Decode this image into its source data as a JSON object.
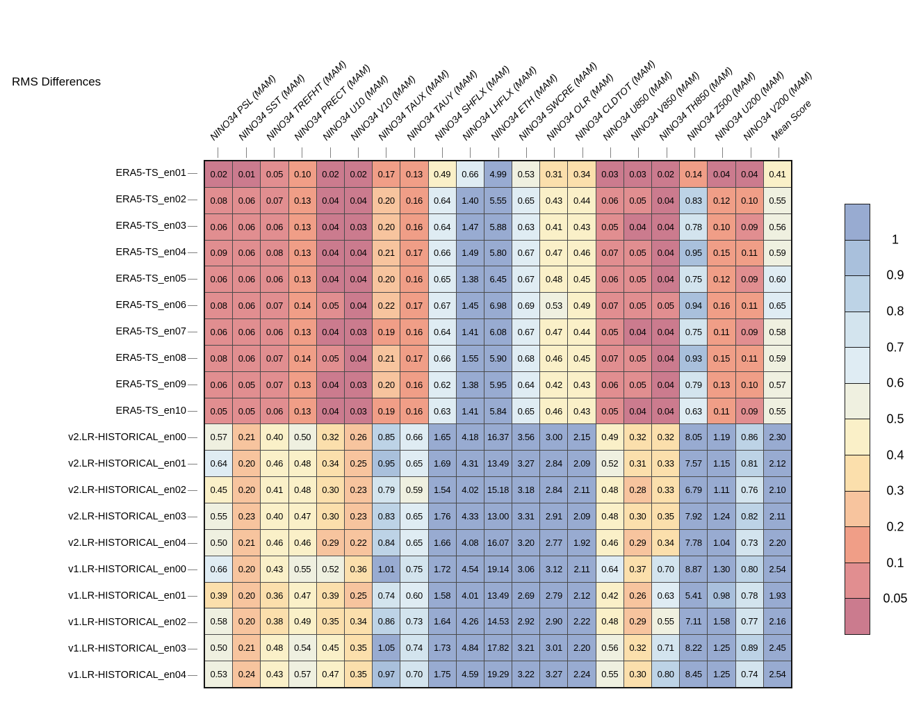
{
  "title": "RMS Differences",
  "chart_data": {
    "type": "heatmap",
    "legend_position": "right",
    "columns": [
      "NINO34 PSL (MAM)",
      "NINO34 SST (MAM)",
      "NINO34 TREFHT (MAM)",
      "NINO34 PRECT (MAM)",
      "NINO34 U10 (MAM)",
      "NINO34 V10 (MAM)",
      "NINO34 TAUX (MAM)",
      "NINO34 TAUY (MAM)",
      "NINO34 SHFLX (MAM)",
      "NINO34 LHFLX (MAM)",
      "NINO34 ETH (MAM)",
      "NINO34 SWCRE (MAM)",
      "NINO34 OLR (MAM)",
      "NINO34 CLDTOT (MAM)",
      "NINO34 U850 (MAM)",
      "NINO34 V850 (MAM)",
      "NINO34 TH850 (MAM)",
      "NINO34 Z500 (MAM)",
      "NINO34 U200 (MAM)",
      "NINO34 V200 (MAM)",
      "Mean Score"
    ],
    "rows": [
      {
        "label": "ERA5-TS_en01",
        "values": [
          "0.02",
          "0.01",
          "0.05",
          "0.10",
          "0.02",
          "0.02",
          "0.17",
          "0.13",
          "0.49",
          "0.66",
          "4.99",
          "0.53",
          "0.31",
          "0.34",
          "0.03",
          "0.03",
          "0.02",
          "0.14",
          "0.04",
          "0.04",
          "0.41"
        ]
      },
      {
        "label": "ERA5-TS_en02",
        "values": [
          "0.08",
          "0.06",
          "0.07",
          "0.13",
          "0.04",
          "0.04",
          "0.20",
          "0.16",
          "0.64",
          "1.40",
          "5.55",
          "0.65",
          "0.43",
          "0.44",
          "0.06",
          "0.05",
          "0.04",
          "0.83",
          "0.12",
          "0.10",
          "0.55"
        ]
      },
      {
        "label": "ERA5-TS_en03",
        "values": [
          "0.06",
          "0.06",
          "0.06",
          "0.13",
          "0.04",
          "0.03",
          "0.20",
          "0.16",
          "0.64",
          "1.47",
          "5.88",
          "0.63",
          "0.41",
          "0.43",
          "0.05",
          "0.04",
          "0.04",
          "0.78",
          "0.10",
          "0.09",
          "0.56"
        ]
      },
      {
        "label": "ERA5-TS_en04",
        "values": [
          "0.09",
          "0.06",
          "0.08",
          "0.13",
          "0.04",
          "0.04",
          "0.21",
          "0.17",
          "0.66",
          "1.49",
          "5.80",
          "0.67",
          "0.47",
          "0.46",
          "0.07",
          "0.05",
          "0.04",
          "0.95",
          "0.15",
          "0.11",
          "0.59"
        ]
      },
      {
        "label": "ERA5-TS_en05",
        "values": [
          "0.06",
          "0.06",
          "0.06",
          "0.13",
          "0.04",
          "0.04",
          "0.20",
          "0.16",
          "0.65",
          "1.38",
          "6.45",
          "0.67",
          "0.48",
          "0.45",
          "0.06",
          "0.05",
          "0.04",
          "0.75",
          "0.12",
          "0.09",
          "0.60"
        ]
      },
      {
        "label": "ERA5-TS_en06",
        "values": [
          "0.08",
          "0.06",
          "0.07",
          "0.14",
          "0.05",
          "0.04",
          "0.22",
          "0.17",
          "0.67",
          "1.45",
          "6.98",
          "0.69",
          "0.53",
          "0.49",
          "0.07",
          "0.05",
          "0.05",
          "0.94",
          "0.16",
          "0.11",
          "0.65"
        ]
      },
      {
        "label": "ERA5-TS_en07",
        "values": [
          "0.06",
          "0.06",
          "0.06",
          "0.13",
          "0.04",
          "0.03",
          "0.19",
          "0.16",
          "0.64",
          "1.41",
          "6.08",
          "0.67",
          "0.47",
          "0.44",
          "0.05",
          "0.04",
          "0.04",
          "0.75",
          "0.11",
          "0.09",
          "0.58"
        ]
      },
      {
        "label": "ERA5-TS_en08",
        "values": [
          "0.08",
          "0.06",
          "0.07",
          "0.14",
          "0.05",
          "0.04",
          "0.21",
          "0.17",
          "0.66",
          "1.55",
          "5.90",
          "0.68",
          "0.46",
          "0.45",
          "0.07",
          "0.05",
          "0.04",
          "0.93",
          "0.15",
          "0.11",
          "0.59"
        ]
      },
      {
        "label": "ERA5-TS_en09",
        "values": [
          "0.06",
          "0.05",
          "0.07",
          "0.13",
          "0.04",
          "0.03",
          "0.20",
          "0.16",
          "0.62",
          "1.38",
          "5.95",
          "0.64",
          "0.42",
          "0.43",
          "0.06",
          "0.05",
          "0.04",
          "0.79",
          "0.13",
          "0.10",
          "0.57"
        ]
      },
      {
        "label": "ERA5-TS_en10",
        "values": [
          "0.05",
          "0.05",
          "0.06",
          "0.13",
          "0.04",
          "0.03",
          "0.19",
          "0.16",
          "0.63",
          "1.41",
          "5.84",
          "0.65",
          "0.46",
          "0.43",
          "0.05",
          "0.04",
          "0.04",
          "0.63",
          "0.11",
          "0.09",
          "0.55"
        ]
      },
      {
        "label": "v2.LR-HISTORICAL_en00",
        "values": [
          "0.57",
          "0.21",
          "0.40",
          "0.50",
          "0.32",
          "0.26",
          "0.85",
          "0.66",
          "1.65",
          "4.18",
          "16.37",
          "3.56",
          "3.00",
          "2.15",
          "0.49",
          "0.32",
          "0.32",
          "8.05",
          "1.19",
          "0.86",
          "2.30"
        ]
      },
      {
        "label": "v2.LR-HISTORICAL_en01",
        "values": [
          "0.64",
          "0.20",
          "0.46",
          "0.48",
          "0.34",
          "0.25",
          "0.95",
          "0.65",
          "1.69",
          "4.31",
          "13.49",
          "3.27",
          "2.84",
          "2.09",
          "0.52",
          "0.31",
          "0.33",
          "7.57",
          "1.15",
          "0.81",
          "2.12"
        ]
      },
      {
        "label": "v2.LR-HISTORICAL_en02",
        "values": [
          "0.45",
          "0.20",
          "0.41",
          "0.48",
          "0.30",
          "0.23",
          "0.79",
          "0.59",
          "1.54",
          "4.02",
          "15.18",
          "3.18",
          "2.84",
          "2.11",
          "0.48",
          "0.28",
          "0.33",
          "6.79",
          "1.11",
          "0.76",
          "2.10"
        ]
      },
      {
        "label": "v2.LR-HISTORICAL_en03",
        "values": [
          "0.55",
          "0.23",
          "0.40",
          "0.47",
          "0.30",
          "0.23",
          "0.83",
          "0.65",
          "1.76",
          "4.33",
          "13.00",
          "3.31",
          "2.91",
          "2.09",
          "0.48",
          "0.30",
          "0.35",
          "7.92",
          "1.24",
          "0.82",
          "2.11"
        ]
      },
      {
        "label": "v2.LR-HISTORICAL_en04",
        "values": [
          "0.50",
          "0.21",
          "0.46",
          "0.46",
          "0.29",
          "0.22",
          "0.84",
          "0.65",
          "1.66",
          "4.08",
          "16.07",
          "3.20",
          "2.77",
          "1.92",
          "0.46",
          "0.29",
          "0.34",
          "7.78",
          "1.04",
          "0.73",
          "2.20"
        ]
      },
      {
        "label": "v1.LR-HISTORICAL_en00",
        "values": [
          "0.66",
          "0.20",
          "0.43",
          "0.55",
          "0.52",
          "0.36",
          "1.01",
          "0.75",
          "1.72",
          "4.54",
          "19.14",
          "3.06",
          "3.12",
          "2.11",
          "0.64",
          "0.37",
          "0.70",
          "8.87",
          "1.30",
          "0.80",
          "2.54"
        ]
      },
      {
        "label": "v1.LR-HISTORICAL_en01",
        "values": [
          "0.39",
          "0.20",
          "0.36",
          "0.47",
          "0.39",
          "0.25",
          "0.74",
          "0.60",
          "1.58",
          "4.01",
          "13.49",
          "2.69",
          "2.79",
          "2.12",
          "0.42",
          "0.26",
          "0.63",
          "5.41",
          "0.98",
          "0.78",
          "1.93"
        ]
      },
      {
        "label": "v1.LR-HISTORICAL_en02",
        "values": [
          "0.58",
          "0.20",
          "0.38",
          "0.49",
          "0.35",
          "0.34",
          "0.86",
          "0.73",
          "1.64",
          "4.26",
          "14.53",
          "2.92",
          "2.90",
          "2.22",
          "0.48",
          "0.29",
          "0.55",
          "7.11",
          "1.58",
          "0.77",
          "2.16"
        ]
      },
      {
        "label": "v1.LR-HISTORICAL_en03",
        "values": [
          "0.50",
          "0.21",
          "0.48",
          "0.54",
          "0.45",
          "0.35",
          "1.05",
          "0.74",
          "1.73",
          "4.84",
          "17.82",
          "3.21",
          "3.01",
          "2.20",
          "0.56",
          "0.32",
          "0.71",
          "8.22",
          "1.25",
          "0.89",
          "2.45"
        ]
      },
      {
        "label": "v1.LR-HISTORICAL_en04",
        "values": [
          "0.53",
          "0.24",
          "0.43",
          "0.57",
          "0.47",
          "0.35",
          "0.97",
          "0.70",
          "1.75",
          "4.59",
          "19.29",
          "3.22",
          "3.27",
          "2.24",
          "0.55",
          "0.30",
          "0.80",
          "8.45",
          "1.25",
          "0.74",
          "2.54"
        ]
      }
    ],
    "colorbar": {
      "tick_labels": [
        "1",
        "0.9",
        "0.8",
        "0.7",
        "0.6",
        "0.5",
        "0.4",
        "0.3",
        "0.2",
        "0.1",
        "0.05"
      ],
      "bands": [
        {
          "min": 1.0,
          "color": "#98ABD1"
        },
        {
          "min": 0.9,
          "color": "#A9C0DC"
        },
        {
          "min": 0.8,
          "color": "#BDD3E6"
        },
        {
          "min": 0.7,
          "color": "#D3E4EE"
        },
        {
          "min": 0.6,
          "color": "#DFECF3"
        },
        {
          "min": 0.5,
          "color": "#EFF0E0"
        },
        {
          "min": 0.4,
          "color": "#FAF0C8"
        },
        {
          "min": 0.3,
          "color": "#FBDFAC"
        },
        {
          "min": 0.2,
          "color": "#F7C49E"
        },
        {
          "min": 0.1,
          "color": "#F09E87"
        },
        {
          "min": 0.05,
          "color": "#E18E90"
        },
        {
          "min": 0.0,
          "color": "#CB7B8E"
        }
      ]
    }
  }
}
